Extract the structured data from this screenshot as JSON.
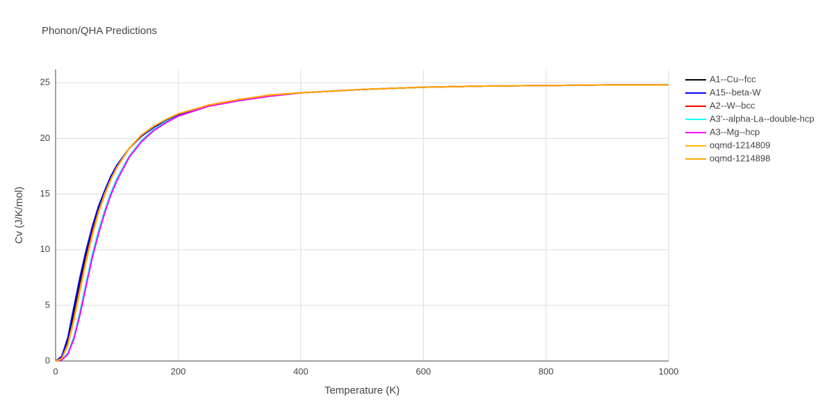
{
  "chart_data": {
    "type": "line",
    "title": "Phonon/QHA Predictions",
    "x_label": "Temperature (K)",
    "y_label": "Cv (J/K/mol)",
    "x": [
      0,
      10,
      20,
      30,
      40,
      50,
      60,
      70,
      80,
      90,
      100,
      120,
      140,
      160,
      180,
      200,
      250,
      300,
      350,
      400,
      500,
      600,
      700,
      800,
      900,
      1000
    ],
    "series": [
      {
        "name": "A1--Cu--fcc",
        "color": "#000000",
        "values": [
          0,
          0.3,
          1.8,
          4.5,
          7.2,
          9.7,
          11.9,
          13.7,
          15.2,
          16.5,
          17.5,
          19.1,
          20.2,
          21.0,
          21.6,
          22.1,
          22.9,
          23.5,
          23.8,
          24.1,
          24.4,
          24.6,
          24.7,
          24.75,
          24.8,
          24.8
        ]
      },
      {
        "name": "A15--beta-W",
        "color": "#0000ff",
        "values": [
          0,
          0.4,
          2.1,
          4.9,
          7.6,
          10.0,
          12.1,
          13.9,
          15.3,
          16.6,
          17.6,
          19.1,
          20.2,
          21.0,
          21.6,
          22.1,
          22.9,
          23.4,
          23.8,
          24.1,
          24.4,
          24.6,
          24.7,
          24.75,
          24.8,
          24.8
        ]
      },
      {
        "name": "A2--W--bcc",
        "color": "#ff0000",
        "values": [
          0,
          0.2,
          1.5,
          3.9,
          6.6,
          9.2,
          11.5,
          13.4,
          15.0,
          16.3,
          17.4,
          19.1,
          20.3,
          21.1,
          21.7,
          22.2,
          23.0,
          23.5,
          23.9,
          24.1,
          24.4,
          24.6,
          24.7,
          24.75,
          24.8,
          24.8
        ]
      },
      {
        "name": "A3'--alpha-La--double-hcp",
        "color": "#00ffff",
        "values": [
          0,
          0.1,
          0.7,
          2.2,
          4.5,
          7.1,
          9.6,
          11.7,
          13.5,
          15.1,
          16.4,
          18.4,
          19.8,
          20.8,
          21.5,
          22.0,
          22.9,
          23.4,
          23.8,
          24.1,
          24.4,
          24.6,
          24.7,
          24.75,
          24.8,
          24.8
        ]
      },
      {
        "name": "A3--Mg--hcp",
        "color": "#ff00ff",
        "values": [
          0,
          0.1,
          0.6,
          2.0,
          4.2,
          6.8,
          9.3,
          11.4,
          13.3,
          14.9,
          16.2,
          18.3,
          19.7,
          20.7,
          21.4,
          22.0,
          22.9,
          23.4,
          23.8,
          24.1,
          24.4,
          24.6,
          24.7,
          24.75,
          24.8,
          24.8
        ]
      },
      {
        "name": "oqmd-1214809",
        "color": "#f5b800",
        "values": [
          0,
          0.2,
          1.4,
          3.7,
          6.4,
          9.0,
          11.3,
          13.3,
          14.9,
          16.3,
          17.4,
          19.1,
          20.3,
          21.1,
          21.7,
          22.2,
          23.0,
          23.5,
          23.9,
          24.1,
          24.4,
          24.6,
          24.7,
          24.75,
          24.8,
          24.8
        ]
      },
      {
        "name": "oqmd-1214898",
        "color": "#ffa500",
        "values": [
          0,
          0.2,
          1.5,
          3.8,
          6.5,
          9.1,
          11.4,
          13.4,
          15.0,
          16.3,
          17.4,
          19.1,
          20.3,
          21.1,
          21.7,
          22.2,
          23.0,
          23.5,
          23.9,
          24.1,
          24.4,
          24.6,
          24.7,
          24.75,
          24.8,
          24.8
        ]
      }
    ],
    "xlim": [
      0,
      1000
    ],
    "xticks": [
      0,
      200,
      400,
      600,
      800,
      1000
    ],
    "ylim": [
      0,
      26.2
    ],
    "yticks": [
      0,
      5,
      10,
      15,
      20,
      25
    ],
    "grid": true
  }
}
